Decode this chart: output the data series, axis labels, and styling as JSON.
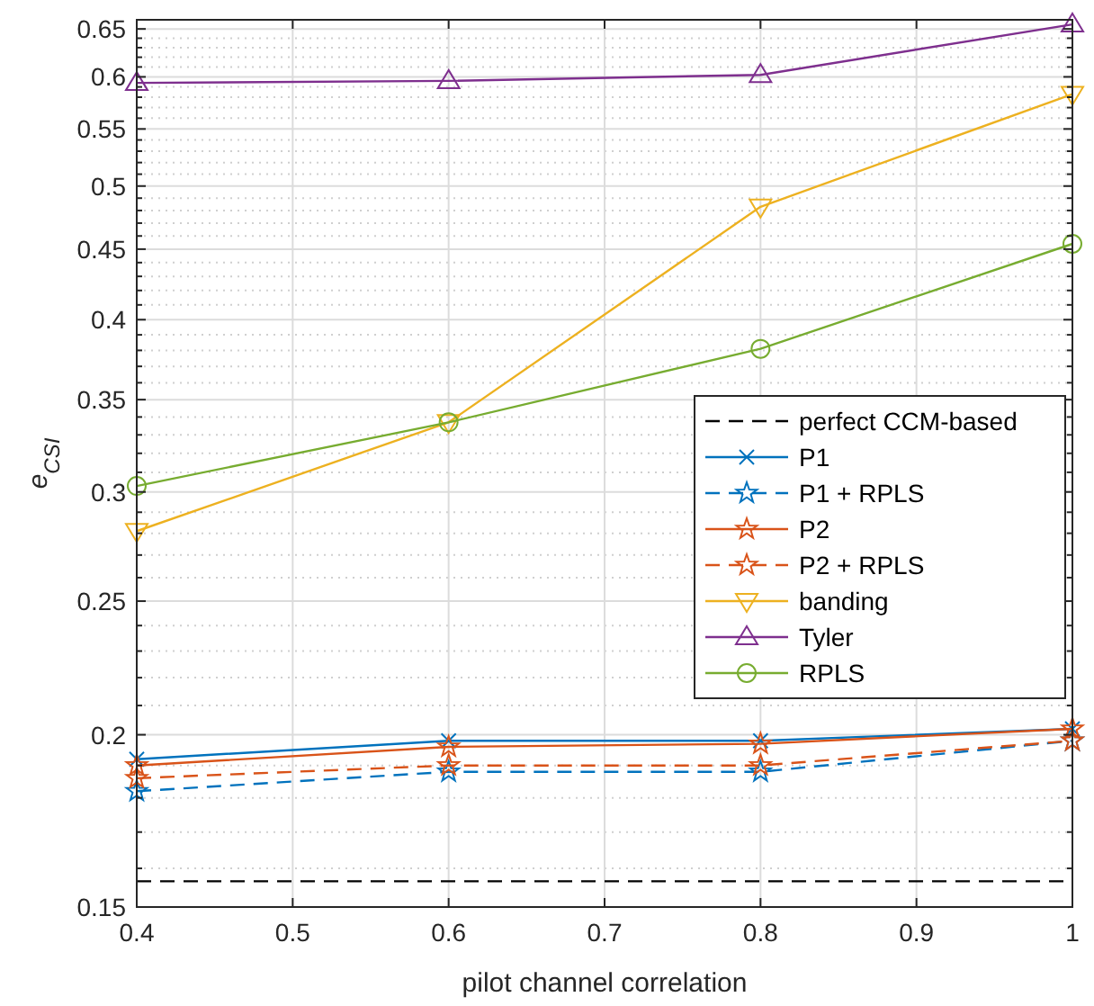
{
  "chart_data": {
    "type": "line",
    "xlabel": "pilot channel correlation",
    "ylabel": "e$_{CSI}$",
    "x": [
      0.4,
      0.6,
      0.8,
      1
    ],
    "xlim": [
      0.4,
      1
    ],
    "xticks": [
      0.4,
      0.5,
      0.6,
      0.7,
      0.8,
      0.9,
      1
    ],
    "log": "y",
    "ylim": [
      0.15,
      0.66
    ],
    "yticks": [
      0.15,
      {
        "value": 0.16,
        "label": null
      },
      {
        "value": 0.17,
        "label": null
      },
      {
        "value": 0.18,
        "label": null
      },
      {
        "value": 0.19,
        "label": null
      },
      0.2,
      {
        "value": 0.21,
        "label": null
      },
      {
        "value": 0.22,
        "label": null
      },
      {
        "value": 0.23,
        "label": null
      },
      {
        "value": 0.24,
        "label": null
      },
      0.25,
      {
        "value": 0.26,
        "label": null
      },
      {
        "value": 0.27,
        "label": null
      },
      {
        "value": 0.28,
        "label": null
      },
      {
        "value": 0.29,
        "label": null
      },
      0.3,
      {
        "value": 0.31,
        "label": null
      },
      {
        "value": 0.32,
        "label": null
      },
      {
        "value": 0.33,
        "label": null
      },
      {
        "value": 0.34,
        "label": null
      },
      0.35,
      {
        "value": 0.36,
        "label": null
      },
      {
        "value": 0.37,
        "label": null
      },
      {
        "value": 0.38,
        "label": null
      },
      {
        "value": 0.39,
        "label": null
      },
      0.4,
      {
        "value": 0.41,
        "label": null
      },
      {
        "value": 0.42,
        "label": null
      },
      {
        "value": 0.43,
        "label": null
      },
      {
        "value": 0.44,
        "label": null
      },
      0.45,
      {
        "value": 0.46,
        "label": null
      },
      {
        "value": 0.47,
        "label": null
      },
      {
        "value": 0.48,
        "label": null
      },
      {
        "value": 0.49,
        "label": null
      },
      0.5,
      {
        "value": 0.51,
        "label": null
      },
      {
        "value": 0.52,
        "label": null
      },
      {
        "value": 0.53,
        "label": null
      },
      {
        "value": 0.54,
        "label": null
      },
      0.55,
      {
        "value": 0.56,
        "label": null
      },
      {
        "value": 0.57,
        "label": null
      },
      {
        "value": 0.58,
        "label": null
      },
      {
        "value": 0.59,
        "label": null
      },
      0.6,
      {
        "value": 0.61,
        "label": null
      },
      {
        "value": 0.62,
        "label": null
      },
      {
        "value": 0.63,
        "label": null
      },
      {
        "value": 0.64,
        "label": null
      },
      0.65
    ],
    "grid": true,
    "legend": "right",
    "series": [
      {
        "name": "perfect CCM-based",
        "color": "#000000",
        "line_style": "dashed",
        "marker": "none",
        "values": [
          0.1566,
          0.1566,
          0.1566,
          0.1566
        ]
      },
      {
        "name": "P1",
        "color": "#0072bd",
        "line_style": "solid",
        "marker": "cross",
        "values": [
          0.192,
          0.198,
          0.198,
          0.202
        ]
      },
      {
        "name": "P1 + RPLS",
        "color": "#0072bd",
        "line_style": "dashed",
        "marker": "star",
        "values": [
          0.182,
          0.188,
          0.188,
          0.198
        ]
      },
      {
        "name": "P2",
        "color": "#d95319",
        "line_style": "solid",
        "marker": "star",
        "values": [
          0.19,
          0.196,
          0.197,
          0.202
        ]
      },
      {
        "name": "P2 + RPLS",
        "color": "#d95319",
        "line_style": "dashed",
        "marker": "star",
        "values": [
          0.186,
          0.19,
          0.19,
          0.198
        ]
      },
      {
        "name": "banding",
        "color": "#edb120",
        "line_style": "solid",
        "marker": "triangle-down",
        "values": [
          0.281,
          0.337,
          0.483,
          0.583
        ]
      },
      {
        "name": "Tyler",
        "color": "#7e2f8e",
        "line_style": "solid",
        "marker": "triangle",
        "values": [
          0.594,
          0.596,
          0.602,
          0.655
        ]
      },
      {
        "name": "RPLS",
        "color": "#77ac30",
        "line_style": "solid",
        "marker": "circle",
        "values": [
          0.303,
          0.337,
          0.381,
          0.454
        ]
      }
    ]
  }
}
